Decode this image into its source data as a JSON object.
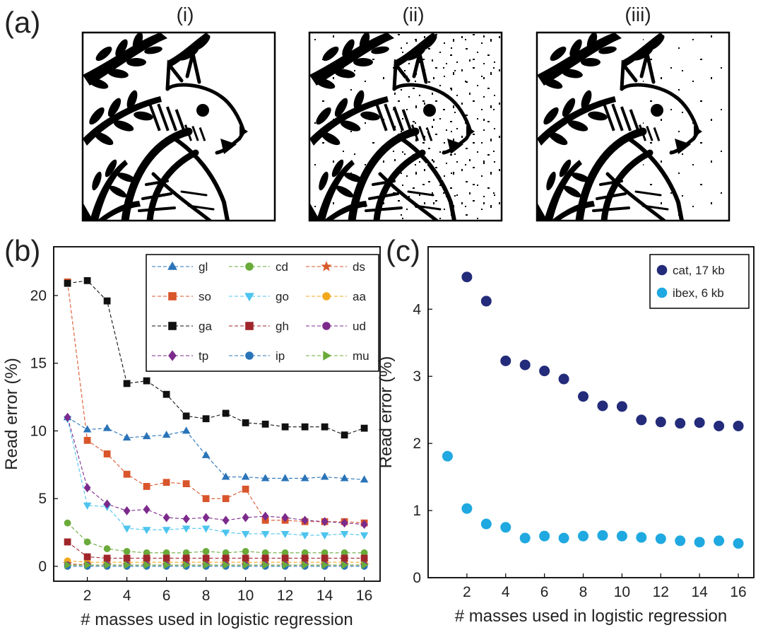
{
  "panel_a": {
    "label": "(a)",
    "subpanels": [
      "(i)",
      "(ii)",
      "(iii)"
    ]
  },
  "chart_data": [
    {
      "panel": "(b)",
      "type": "line",
      "xlabel": "# masses used in logistic regression",
      "ylabel": "Read error (%)",
      "xlim": [
        0.3,
        16.8
      ],
      "ylim": [
        -1.1,
        23.6
      ],
      "xticks": [
        2,
        4,
        6,
        8,
        10,
        12,
        14,
        16
      ],
      "yticks": [
        0,
        5,
        10,
        15,
        20
      ],
      "grid": false,
      "legend_position": "top-right",
      "x": [
        1,
        2,
        3,
        4,
        5,
        6,
        7,
        8,
        9,
        10,
        11,
        12,
        13,
        14,
        15,
        16
      ],
      "series": [
        {
          "name": "gl",
          "color": "#2a74b8",
          "marker": "triangle-up",
          "values": [
            11.0,
            10.1,
            10.2,
            9.5,
            9.6,
            9.7,
            10.0,
            8.2,
            6.6,
            6.6,
            6.5,
            6.5,
            6.5,
            6.6,
            6.5,
            6.4
          ]
        },
        {
          "name": "cd",
          "color": "#6aab3a",
          "marker": "circle",
          "values": [
            3.2,
            1.8,
            1.3,
            1.1,
            1.0,
            1.0,
            1.0,
            1.1,
            1.0,
            1.1,
            1.0,
            1.0,
            1.0,
            1.0,
            1.0,
            1.0
          ]
        },
        {
          "name": "ds",
          "color": "#d65a2a",
          "marker": "star",
          "values": [
            0.2,
            0.1,
            0.1,
            0.1,
            0.1,
            0.1,
            0.1,
            0.1,
            0.1,
            0.1,
            0.1,
            0.1,
            0.1,
            0.1,
            0.1,
            0.1
          ]
        },
        {
          "name": "so",
          "color": "#d9552b",
          "marker": "square",
          "values": [
            21.0,
            9.3,
            8.3,
            6.8,
            5.9,
            6.2,
            6.1,
            5.0,
            5.0,
            5.7,
            3.4,
            3.4,
            3.3,
            3.3,
            3.3,
            3.2
          ]
        },
        {
          "name": "go",
          "color": "#4cc4ee",
          "marker": "triangle-down",
          "values": [
            10.9,
            4.5,
            4.4,
            2.8,
            2.7,
            2.7,
            2.8,
            2.8,
            2.5,
            2.4,
            2.4,
            2.4,
            2.3,
            2.3,
            2.4,
            2.3
          ]
        },
        {
          "name": "aa",
          "color": "#f2a81d",
          "marker": "circle",
          "values": [
            0.4,
            0.3,
            0.3,
            0.3,
            0.3,
            0.3,
            0.3,
            0.3,
            0.3,
            0.3,
            0.3,
            0.3,
            0.3,
            0.3,
            0.3,
            0.3
          ]
        },
        {
          "name": "ga",
          "color": "#111111",
          "marker": "square",
          "values": [
            20.9,
            21.1,
            19.6,
            13.5,
            13.7,
            12.7,
            11.1,
            10.9,
            11.3,
            10.6,
            10.5,
            10.3,
            10.3,
            10.3,
            9.7,
            10.2
          ]
        },
        {
          "name": "gh",
          "color": "#a0262b",
          "marker": "square",
          "values": [
            1.8,
            0.7,
            0.6,
            0.6,
            0.6,
            0.6,
            0.6,
            0.6,
            0.6,
            0.6,
            0.6,
            0.6,
            0.6,
            0.6,
            0.6,
            0.6
          ]
        },
        {
          "name": "ud",
          "color": "#7c2a8c",
          "marker": "circle",
          "values": [
            0.1,
            0.1,
            0.1,
            0.1,
            0.1,
            0.1,
            0.1,
            0.1,
            0.1,
            0.1,
            0.1,
            0.1,
            0.1,
            0.1,
            0.1,
            0.1
          ]
        },
        {
          "name": "tp",
          "color": "#7c2a8c",
          "marker": "diamond",
          "values": [
            11.0,
            5.8,
            4.6,
            4.1,
            4.2,
            3.6,
            3.5,
            3.6,
            3.4,
            3.6,
            3.7,
            3.6,
            3.4,
            3.3,
            3.2,
            3.1
          ]
        },
        {
          "name": "ip",
          "color": "#2a74b8",
          "marker": "circle",
          "values": [
            0.0,
            0.0,
            0.0,
            0.0,
            0.0,
            0.0,
            0.0,
            0.0,
            0.0,
            0.0,
            0.0,
            0.0,
            0.0,
            0.0,
            0.0,
            0.0
          ]
        },
        {
          "name": "mu",
          "color": "#6aab3a",
          "marker": "triangle-right",
          "values": [
            0.1,
            0.1,
            0.1,
            0.1,
            0.1,
            0.1,
            0.1,
            0.1,
            0.1,
            0.1,
            0.1,
            0.1,
            0.1,
            0.1,
            0.1,
            0.1
          ]
        }
      ]
    },
    {
      "panel": "(c)",
      "type": "scatter",
      "xlabel": "# masses used in logistic regression",
      "ylabel": "Read error (%)",
      "xlim": [
        0,
        16.8
      ],
      "ylim": [
        0,
        4.93
      ],
      "xticks": [
        2,
        4,
        6,
        8,
        10,
        12,
        14,
        16
      ],
      "yticks": [
        0,
        1,
        2,
        3,
        4
      ],
      "grid": false,
      "legend_position": "top-right",
      "series": [
        {
          "name": "cat, 17 kb",
          "color": "#232b7a",
          "marker": "circle",
          "x": [
            2,
            3,
            4,
            5,
            6,
            7,
            8,
            9,
            10,
            11,
            12,
            13,
            14,
            15,
            16
          ],
          "values": [
            4.48,
            4.12,
            3.23,
            3.17,
            3.08,
            2.96,
            2.7,
            2.56,
            2.55,
            2.35,
            2.32,
            2.3,
            2.31,
            2.26,
            2.26
          ]
        },
        {
          "name": "ibex, 6 kb",
          "color": "#1fa9e0",
          "marker": "circle",
          "x": [
            1,
            2,
            3,
            4,
            5,
            6,
            7,
            8,
            9,
            10,
            11,
            12,
            13,
            14,
            15,
            16
          ],
          "values": [
            1.81,
            1.03,
            0.8,
            0.75,
            0.59,
            0.62,
            0.59,
            0.62,
            0.63,
            0.62,
            0.6,
            0.58,
            0.55,
            0.53,
            0.55,
            0.51
          ]
        }
      ]
    }
  ]
}
